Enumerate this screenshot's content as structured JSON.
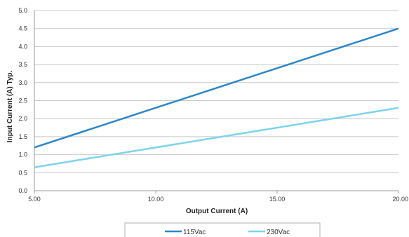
{
  "chart_data": {
    "type": "line",
    "xlabel": "Output Current (A)",
    "ylabel": "Input Current (A) Typ.",
    "xlim": [
      5,
      20
    ],
    "ylim": [
      0,
      5
    ],
    "x_ticks": [
      "5.00",
      "10.00",
      "15.00",
      "20.00"
    ],
    "y_ticks": [
      "0.0",
      "0.5",
      "1.0",
      "1.5",
      "2.0",
      "2.5",
      "3.0",
      "3.5",
      "4.0",
      "4.5",
      "5.0"
    ],
    "grid": "horizontal",
    "legend_position": "bottom",
    "series": [
      {
        "name": "115Vac",
        "color": "#2e86c9",
        "x": [
          5,
          20
        ],
        "y": [
          1.2,
          4.5
        ]
      },
      {
        "name": "230Vac",
        "color": "#7fd3ef",
        "x": [
          5,
          20
        ],
        "y": [
          0.65,
          2.3
        ]
      }
    ]
  }
}
